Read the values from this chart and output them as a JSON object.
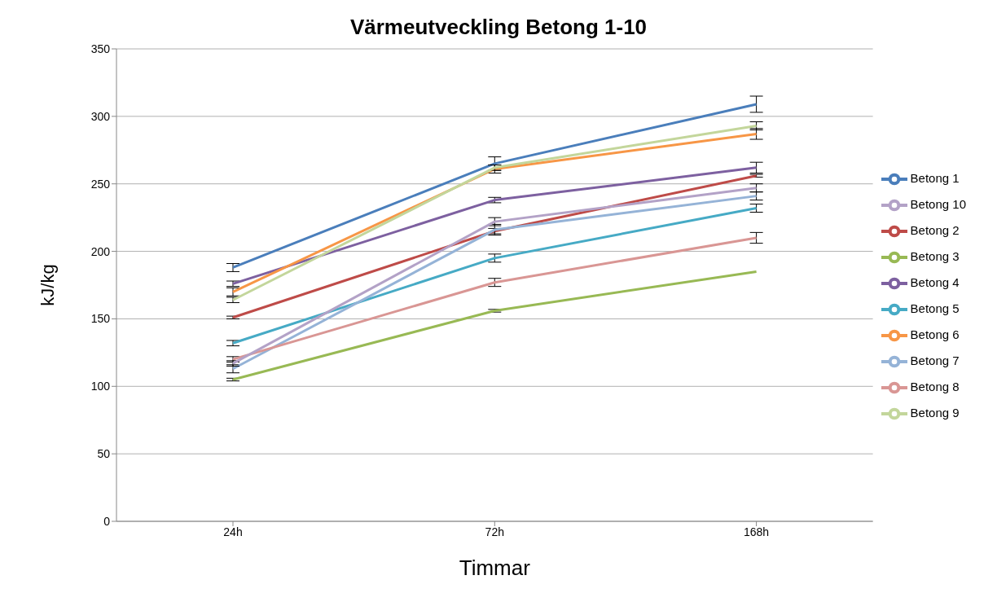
{
  "chart_data": {
    "type": "line",
    "title": "Värmeutveckling Betong 1-10",
    "xlabel": "Timmar",
    "ylabel": "kJ/kg",
    "categories": [
      "24h",
      "72h",
      "168h"
    ],
    "ylim": [
      0,
      350
    ],
    "yticks": [
      0,
      50,
      100,
      150,
      200,
      250,
      300,
      350
    ],
    "grid": "y",
    "legend": "right",
    "marker": "none",
    "line_style": "solid",
    "series": [
      {
        "name": "Betong 1",
        "color": "#4a7ebb",
        "values": [
          188,
          265,
          309
        ],
        "errors": [
          3,
          5,
          6
        ]
      },
      {
        "name": "Betong 2",
        "color": "#be4b48",
        "values": [
          151,
          215,
          256
        ],
        "errors": [
          1,
          2,
          1
        ]
      },
      {
        "name": "Betong 3",
        "color": "#98b954",
        "values": [
          105,
          156,
          185
        ],
        "errors": [
          1,
          1,
          0
        ]
      },
      {
        "name": "Betong 4",
        "color": "#7d60a0",
        "values": [
          176,
          238,
          262
        ],
        "errors": [
          2,
          2,
          4
        ]
      },
      {
        "name": "Betong 5",
        "color": "#46aac5",
        "values": [
          132,
          195,
          232
        ],
        "errors": [
          2,
          3,
          3
        ]
      },
      {
        "name": "Betong 6",
        "color": "#f79646",
        "values": [
          170,
          261,
          287
        ],
        "errors": [
          3,
          3,
          4
        ]
      },
      {
        "name": "Betong 7",
        "color": "#95b3d7",
        "values": [
          113,
          216,
          241
        ],
        "errors": [
          3,
          4,
          3
        ]
      },
      {
        "name": "Betong 8",
        "color": "#d99694",
        "values": [
          120,
          177,
          210
        ],
        "errors": [
          2,
          3,
          4
        ]
      },
      {
        "name": "Betong 9",
        "color": "#c3d69b",
        "values": [
          164,
          262,
          293
        ],
        "errors": [
          2,
          2,
          3
        ]
      },
      {
        "name": "Betong 10",
        "color": "#b3a2c7",
        "values": [
          117,
          222,
          247
        ],
        "errors": [
          2,
          3,
          3
        ]
      }
    ]
  }
}
